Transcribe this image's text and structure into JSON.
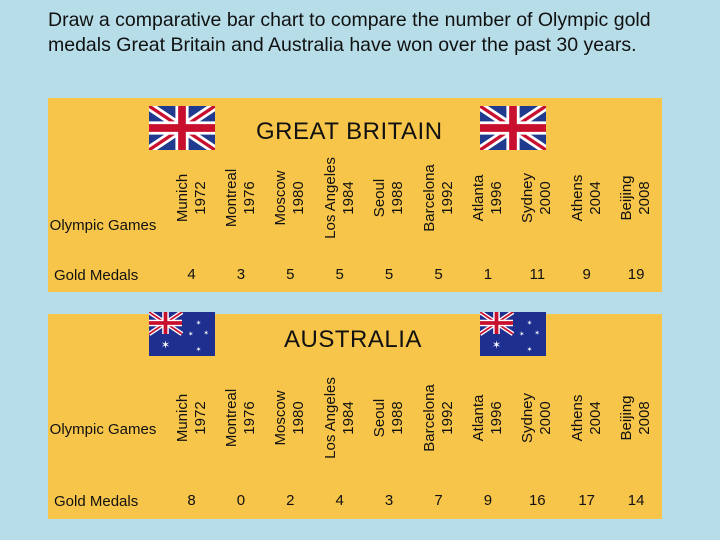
{
  "heading": "Draw a comparative bar chart to compare the number of Olympic gold medals Great Britain and Australia have won over the past 30 years.",
  "row_labels": {
    "games": "Olympic Games",
    "medals": "Gold Medals"
  },
  "games": [
    {
      "city": "Munich",
      "year": "1972"
    },
    {
      "city": "Montreal",
      "year": "1976"
    },
    {
      "city": "Moscow",
      "year": "1980"
    },
    {
      "city": "Los Angeles",
      "year": "1984"
    },
    {
      "city": "Seoul",
      "year": "1988"
    },
    {
      "city": "Barcelona",
      "year": "1992"
    },
    {
      "city": "Atlanta",
      "year": "1996"
    },
    {
      "city": "Sydney",
      "year": "2000"
    },
    {
      "city": "Athens",
      "year": "2004"
    },
    {
      "city": "Beijing",
      "year": "2008"
    }
  ],
  "great_britain": {
    "title": "GREAT BRITAIN",
    "flag": "union-jack-flag-icon",
    "medals": [
      "4",
      "3",
      "5",
      "5",
      "5",
      "5",
      "1",
      "11",
      "9",
      "19"
    ]
  },
  "australia": {
    "title": "AUSTRALIA",
    "flag": "australian-flag-icon",
    "medals": [
      "8",
      "0",
      "2",
      "4",
      "3",
      "7",
      "9",
      "16",
      "17",
      "14"
    ]
  },
  "colors": {
    "background": "#b7dde8",
    "panel": "#f7c54a"
  }
}
